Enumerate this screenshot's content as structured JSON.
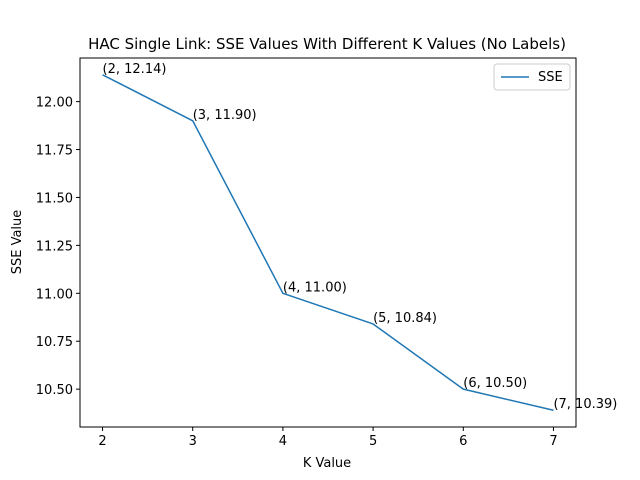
{
  "chart_data": {
    "type": "line",
    "title": "HAC Single Link: SSE Values With Different K Values (No Labels)",
    "xlabel": "K Value",
    "ylabel": "SSE Value",
    "x": [
      2,
      3,
      4,
      5,
      6,
      7
    ],
    "series": [
      {
        "name": "SSE",
        "values": [
          12.14,
          11.9,
          11.0,
          10.84,
          10.5,
          10.39
        ],
        "color": "#1f77b4"
      }
    ],
    "annotations": [
      "(2, 12.14)",
      "(3, 11.90)",
      "(4, 11.00)",
      "(5, 10.84)",
      "(6, 10.50)",
      "(7, 10.39)"
    ],
    "xticks": [
      2,
      3,
      4,
      5,
      6,
      7
    ],
    "xtick_labels": [
      "2",
      "3",
      "4",
      "5",
      "6",
      "7"
    ],
    "yticks": [
      10.5,
      10.75,
      11.0,
      11.25,
      11.5,
      11.75,
      12.0
    ],
    "ytick_labels": [
      "10.50",
      "10.75",
      "11.00",
      "11.25",
      "11.50",
      "11.75",
      "12.00"
    ],
    "xlim": [
      1.75,
      7.25
    ],
    "ylim": [
      10.3025,
      12.2275
    ],
    "grid": false,
    "legend_position": "upper right"
  }
}
